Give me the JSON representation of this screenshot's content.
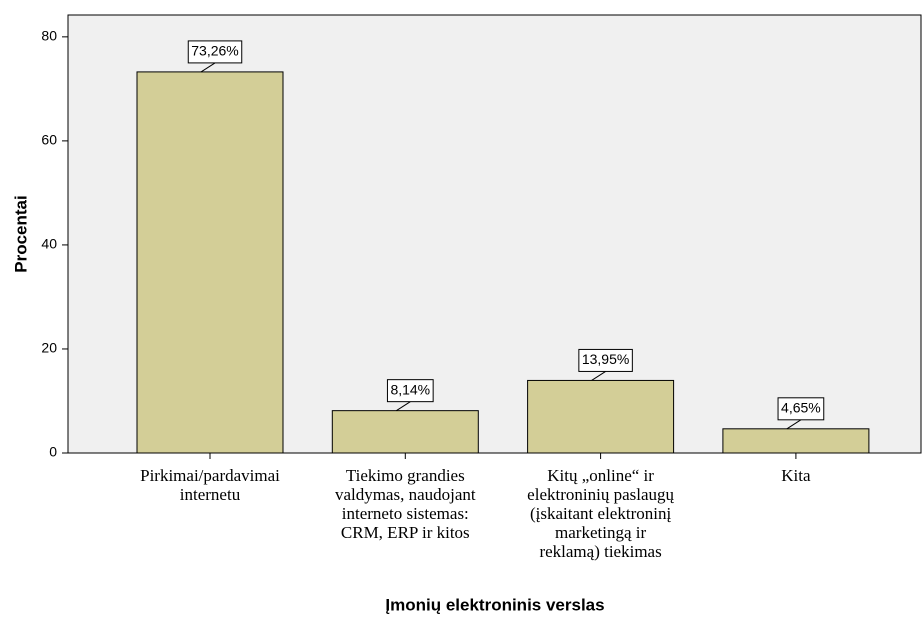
{
  "chart_data": {
    "type": "bar",
    "x_label": "Įmonių elektroninis verslas",
    "y_label": "Procentai",
    "categories": [
      "Pirkimai/pardavimai\ninternetu",
      "Tiekimo grandies\nvaldymas, naudojant\ninterneto sistemas:\nCRM, ERP ir kitos",
      "Kitų „online“ ir\nelektroninių paslaugų\n(įskaitant elektroninį\nmarketingą ir\nreklamą) tiekimas",
      "Kita"
    ],
    "values": [
      73.26,
      8.14,
      13.95,
      4.65
    ],
    "value_labels": [
      "73,26%",
      "8,14%",
      "13,95%",
      "4,65%"
    ],
    "color": "#d3ce97",
    "ylim": [
      0,
      84.2
    ],
    "yticks": [
      0,
      20,
      40,
      60,
      80
    ],
    "grid": false
  }
}
